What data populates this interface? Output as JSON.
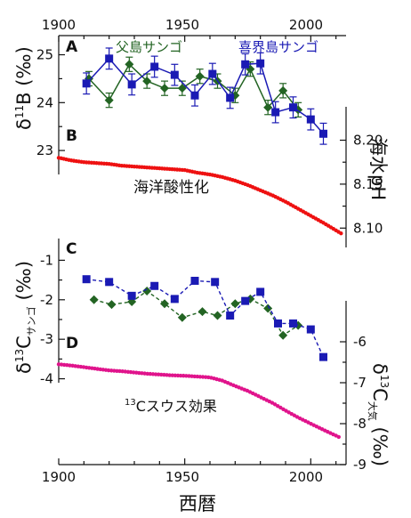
{
  "chart_data": [
    {
      "panel": "A",
      "type": "line",
      "ylabel_main": "δ",
      "ylabel_sup": "11",
      "ylabel_rest": "B (‰)",
      "x_ticks": [
        "1900",
        "1950",
        "2000"
      ],
      "xlim": [
        1900,
        2014
      ],
      "ylim": [
        22.5,
        25.4
      ],
      "y_ticks": [
        "23",
        "24",
        "25"
      ],
      "series": [
        {
          "name": "父島サンゴ",
          "color": "#236423",
          "marker": "diamond",
          "x": [
            1912,
            1920,
            1928,
            1935,
            1942,
            1949,
            1956,
            1963,
            1970,
            1976,
            1983,
            1989,
            1995
          ],
          "y": [
            24.5,
            24.05,
            24.8,
            24.45,
            24.3,
            24.3,
            24.55,
            24.45,
            24.15,
            24.7,
            23.9,
            24.25,
            23.85
          ],
          "err": [
            0.15,
            0.15,
            0.15,
            0.15,
            0.15,
            0.15,
            0.15,
            0.15,
            0.15,
            0.15,
            0.15,
            0.15,
            0.15
          ]
        },
        {
          "name": "喜界島サンゴ",
          "color": "#1a1ab4",
          "marker": "square",
          "x": [
            1911,
            1920,
            1929,
            1938,
            1946,
            1954,
            1961,
            1968,
            1974,
            1980,
            1986,
            1993,
            2000,
            2005
          ],
          "y": [
            24.4,
            24.92,
            24.38,
            24.75,
            24.58,
            24.15,
            24.6,
            24.1,
            24.8,
            24.82,
            23.8,
            23.9,
            23.65,
            23.35
          ],
          "err": [
            0.22,
            0.22,
            0.22,
            0.22,
            0.22,
            0.22,
            0.22,
            0.22,
            0.22,
            0.22,
            0.22,
            0.22,
            0.22,
            0.22
          ]
        }
      ]
    },
    {
      "panel": "B",
      "type": "scatter",
      "ylabel": "海水pH",
      "annotation": "海洋酸性化",
      "ylim": [
        8.078,
        8.238
      ],
      "y_ticks": [
        "8.10",
        "8.15",
        "8.20"
      ],
      "color": "#ee1111",
      "x": [
        1900,
        1905,
        1910,
        1915,
        1920,
        1925,
        1930,
        1935,
        1940,
        1945,
        1950,
        1955,
        1960,
        1965,
        1970,
        1975,
        1980,
        1985,
        1990,
        1995,
        2000,
        2005,
        2012
      ],
      "y": [
        8.18,
        8.177,
        8.175,
        8.174,
        8.173,
        8.171,
        8.17,
        8.169,
        8.168,
        8.167,
        8.166,
        8.163,
        8.161,
        8.158,
        8.154,
        8.149,
        8.143,
        8.137,
        8.13,
        8.122,
        8.114,
        8.106,
        8.094
      ]
    },
    {
      "panel": "C",
      "type": "line",
      "ylabel_main": "δ",
      "ylabel_sup": "13",
      "ylabel_c": "C",
      "ylabel_sub": "サンゴ",
      "ylabel_rest": " (‰)",
      "ylim": [
        -4.1,
        -0.45
      ],
      "y_ticks": [
        "-1",
        "-2",
        "-3",
        "-4"
      ],
      "series": [
        {
          "name": "父島サンゴ",
          "color": "#236423",
          "marker": "diamond",
          "x": [
            1914,
            1921,
            1929,
            1935,
            1942,
            1949,
            1957,
            1963,
            1970,
            1976,
            1983,
            1989,
            1995
          ],
          "y": [
            -2.0,
            -2.12,
            -2.05,
            -1.78,
            -2.1,
            -2.45,
            -2.3,
            -2.4,
            -2.1,
            -1.98,
            -2.22,
            -2.9,
            -2.65
          ]
        },
        {
          "name": "喜界島サンゴ",
          "color": "#1a1ab4",
          "marker": "square",
          "x": [
            1911,
            1920,
            1929,
            1938,
            1946,
            1954,
            1962,
            1968,
            1974,
            1980,
            1987,
            1993,
            2000,
            2005
          ],
          "y": [
            -1.48,
            -1.55,
            -1.9,
            -1.65,
            -1.98,
            -1.52,
            -1.55,
            -2.4,
            -2.03,
            -1.8,
            -2.6,
            -2.6,
            -2.75,
            -3.45
          ]
        }
      ]
    },
    {
      "panel": "D",
      "type": "scatter",
      "ylabel_main": "δ",
      "ylabel_sup": "13",
      "ylabel_c": "C",
      "ylabel_sub": "大気",
      "ylabel_rest": " (‰)",
      "annotation_sup": "13",
      "annotation": "Cスウス効果",
      "ylim": [
        -9,
        -5.0
      ],
      "y_ticks": [
        "-6",
        "-7",
        "-8",
        "-9"
      ],
      "color": "#e0148c",
      "x": [
        1900,
        1905,
        1910,
        1915,
        1920,
        1925,
        1930,
        1935,
        1940,
        1945,
        1950,
        1955,
        1960,
        1965,
        1970,
        1975,
        1980,
        1985,
        1990,
        1995,
        2000,
        2005,
        2012
      ],
      "y": [
        -6.55,
        -6.58,
        -6.62,
        -6.66,
        -6.7,
        -6.72,
        -6.75,
        -6.78,
        -6.8,
        -6.82,
        -6.83,
        -6.85,
        -6.87,
        -6.95,
        -7.08,
        -7.2,
        -7.35,
        -7.5,
        -7.68,
        -7.85,
        -8.0,
        -8.15,
        -8.35
      ]
    }
  ],
  "shared_x": {
    "label": "西暦",
    "ticks": [
      "1900",
      "1950",
      "2000"
    ]
  }
}
